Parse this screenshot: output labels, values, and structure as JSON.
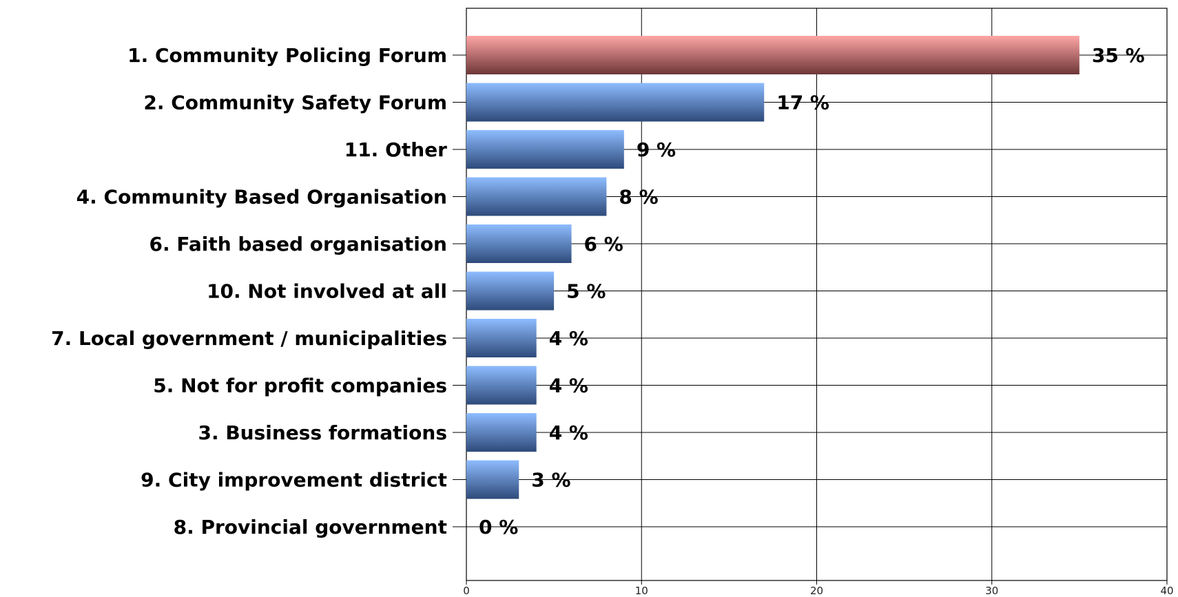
{
  "chart_data": {
    "type": "bar",
    "orientation": "horizontal",
    "categories": [
      "1. Community Policing Forum",
      "2. Community Safety Forum",
      "11. Other",
      "4. Community Based Organisation",
      "6. Faith based organisation",
      "10. Not involved at all",
      "7. Local government / municipalities",
      "5. Not for profit companies",
      "3. Business formations",
      "9. City improvement district",
      "8. Provincial government"
    ],
    "values": [
      35,
      17,
      9,
      8,
      6,
      5,
      4,
      4,
      4,
      3,
      0
    ],
    "data_labels": [
      "35 %",
      "17 %",
      "9 %",
      "8 %",
      "6 %",
      "5 %",
      "4 %",
      "4 %",
      "4 %",
      "3 %",
      "0 %"
    ],
    "xlim": [
      0,
      40
    ],
    "xticks": [
      0,
      10,
      20,
      30,
      40
    ],
    "tick_labels": [
      "0",
      "10",
      "20",
      "30",
      "40"
    ],
    "grid": true,
    "legend": "none",
    "colors": {
      "highlight_top": "#ffa6a6",
      "highlight_bottom": "#6e3636",
      "bar_top": "#8ebcff",
      "bar_bottom": "#2e4a7a",
      "grid": "#000000"
    }
  }
}
